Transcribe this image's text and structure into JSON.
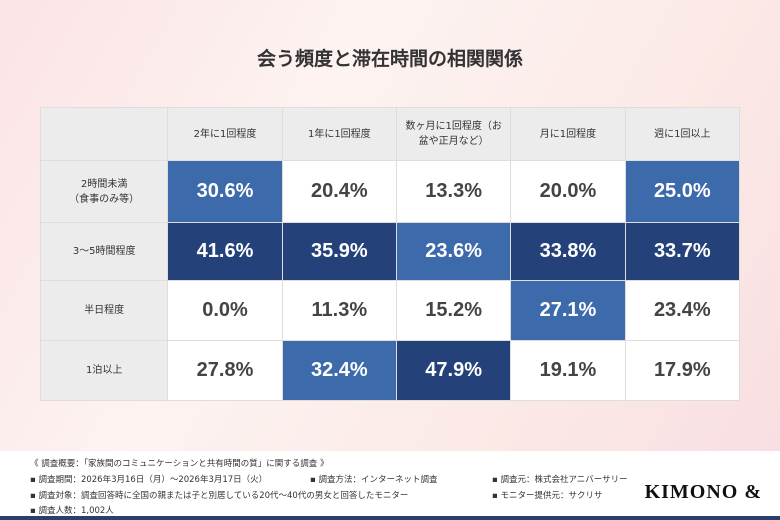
{
  "chart_data": {
    "type": "table",
    "title": "会う頻度と滞在時間の相関関係",
    "columns": [
      "2年に1回程度",
      "1年に1回程度",
      "数ヶ月に1回程度（お盆や正月など）",
      "月に1回程度",
      "週に1回以上"
    ],
    "rows": [
      {
        "label": "2時間未満（食事のみ等）",
        "values": [
          "30.6%",
          "20.4%",
          "13.3%",
          "20.0%",
          "25.0%"
        ],
        "shade": [
          "mid",
          "none",
          "none",
          "none",
          "mid"
        ]
      },
      {
        "label": "3〜5時間程度",
        "values": [
          "41.6%",
          "35.9%",
          "23.6%",
          "33.8%",
          "33.7%"
        ],
        "shade": [
          "dark",
          "dark",
          "mid",
          "dark",
          "dark"
        ]
      },
      {
        "label": "半日程度",
        "values": [
          "0.0%",
          "11.3%",
          "15.2%",
          "27.1%",
          "23.4%"
        ],
        "shade": [
          "none",
          "none",
          "none",
          "mid",
          "none"
        ]
      },
      {
        "label": "1泊以上",
        "values": [
          "27.8%",
          "32.4%",
          "47.9%",
          "19.1%",
          "17.9%"
        ],
        "shade": [
          "none",
          "mid",
          "dark",
          "none",
          "none"
        ]
      }
    ],
    "colors": {
      "mid": "#3d6aab",
      "dark": "#24417a",
      "header": "#ececec"
    }
  },
  "footer": {
    "overview": "《 調査概要：「家族間のコミュニケーションと共有時間の質」に関する調査 》",
    "period": "▪ 調査期間：2026年3月16日（月）〜2026年3月17日（火）",
    "method": "▪ 調査方法：インターネット調査",
    "source": "▪ 調査元：株式会社アニバーサリー",
    "target": "▪ 調査対象：調査回答時に全国の親または子と別居している20代〜40代の男女と回答したモニター",
    "provider": "▪ モニター提供元：サクリサ",
    "count": "▪ 調査人数：1,002人",
    "logo": "KIMONO &"
  }
}
